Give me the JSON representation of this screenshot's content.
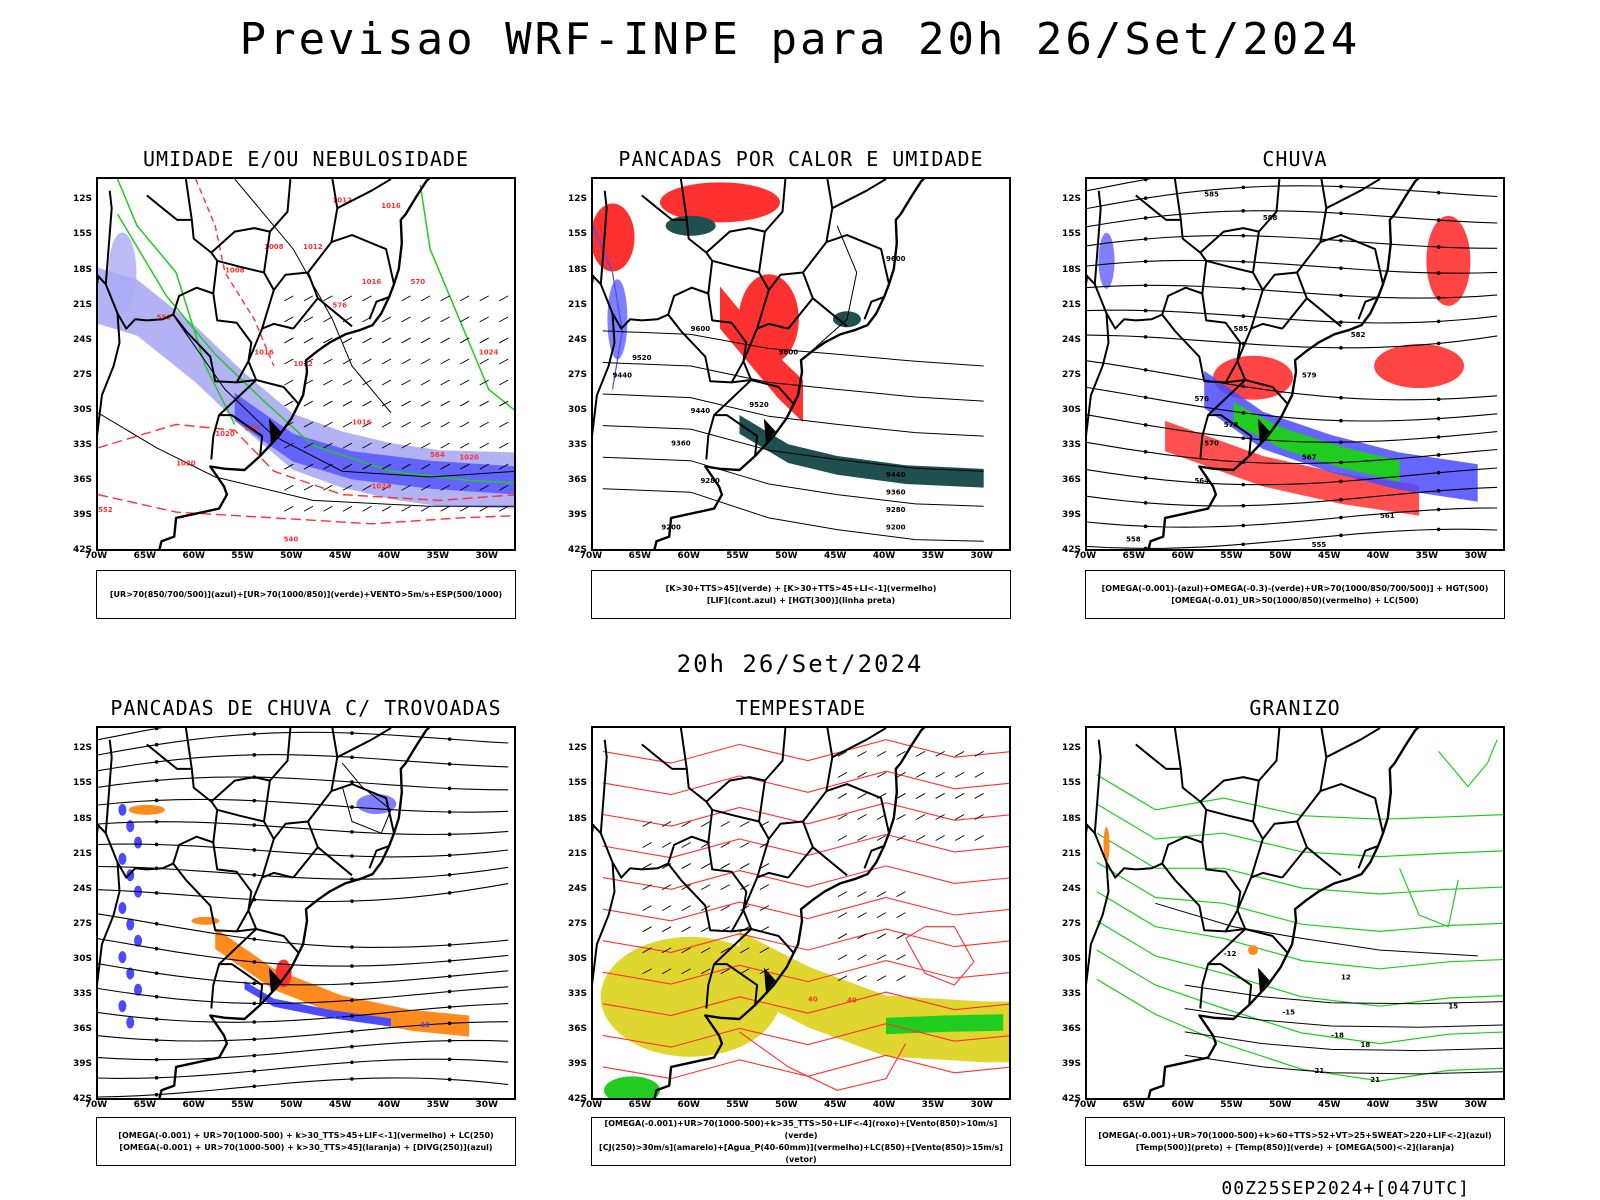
{
  "title": "Previsao WRF-INPE  para 20h 26/Set/2024",
  "center_time": "20h 26/Set/2024",
  "footer": "00Z25SEP2024+[047UTC]",
  "lat_labels": [
    "12S",
    "15S",
    "18S",
    "21S",
    "24S",
    "27S",
    "30S",
    "33S",
    "36S",
    "39S",
    "42S"
  ],
  "lon_labels": [
    "70W",
    "65W",
    "60W",
    "55W",
    "50W",
    "45W",
    "40W",
    "35W",
    "30W"
  ],
  "colors": {
    "blue": "#4a4aff",
    "lavender": "#aaaaf4",
    "green": "#20cc20",
    "red": "#ff3030",
    "orange": "#ff8a1e",
    "yellow": "#e0d630",
    "darkteal": "#1f4f4f",
    "black": "#000000"
  },
  "panels": [
    {
      "id": "umidade",
      "title": "UMIDADE E/OU NEBULOSIDADE",
      "legend": [
        "[UR>70(850/700/500)](azul)+[UR>70(1000/850)](verde)+VENTO>5m/s+ESP(500/1000)"
      ],
      "contour_labels": [
        "1012",
        "1016",
        "1008",
        "1012",
        "1016",
        "1020",
        "1024",
        "1020",
        "1016",
        "1012",
        "1008",
        "1020",
        "1024",
        "1016",
        "552",
        "560",
        "564",
        "570",
        "576",
        "540",
        "552"
      ]
    },
    {
      "id": "pancadas-calor",
      "title": "PANCADAS POR CALOR E UMIDADE",
      "legend": [
        "[K>30+TTS>45](verde)  +  [K>30+TTS>45+LI<-1](vermelho)",
        "[LIF](cont.azul)  +  [HGT(300)](linha preta)"
      ],
      "contour_labels": [
        "9600",
        "9600",
        "9520",
        "9440",
        "9440",
        "9520",
        "9360",
        "9600",
        "9280",
        "9200",
        "9440",
        "9360",
        "9280",
        "9200"
      ]
    },
    {
      "id": "chuva",
      "title": "CHUVA",
      "legend": [
        "[OMEGA(-0.001)-(azul)+OMEGA(-0.3)-(verde)+UR>70(1000/850/700/500)]  +  HGT(500)",
        "[OMEGA(-0.01)_UR>50(1000/850)(vermelho)  +  LC(500)"
      ],
      "contour_labels": [
        "585",
        "588",
        "585",
        "582",
        "579",
        "576",
        "573",
        "570",
        "567",
        "564",
        "561",
        "558",
        "555"
      ]
    },
    {
      "id": "trovoadas",
      "title": "PANCADAS DE CHUVA C/ TROVOADAS",
      "legend": [
        "[OMEGA(-0.001)  +  UR>70(1000-500)  +  k>30_TTS>45+LIF<-1](vermelho)  +  LC(250)",
        "[OMEGA(-0.001)  +  UR>70(1000-500)  +  k>30_TTS>45](laranja)  +  [DIVG(250)](azul)"
      ],
      "contour_labels": [
        "10",
        "10"
      ]
    },
    {
      "id": "tempestade",
      "title": "TEMPESTADE",
      "legend": [
        "[OMEGA(-0.001)+UR>70(1000-500)+k>35_TTS>50+LIF<-4](roxo)+[Vento(850)>10m/s](verde)",
        "[CJ(250)>30m/s](amarelo)+[Agua_P(40-60mm)](vermelho)+LC(850)+[Vento(850)>15m/s](vetor)"
      ],
      "contour_labels": [
        "40",
        "40"
      ]
    },
    {
      "id": "granizo",
      "title": "GRANIZO",
      "legend": [
        "[OMEGA(-0.001)+UR>70(1000-500)+k>60+TTS>52+VT>25+SWEAT>220+LIF<-2](azul)",
        "[Temp(500)](preto)  +  [Temp(850)](verde)  +  [OMEGA(500)<-2](laranja)"
      ],
      "contour_labels": [
        "-12",
        "-15",
        "-18",
        "-21",
        "12",
        "15",
        "18",
        "21"
      ]
    }
  ]
}
